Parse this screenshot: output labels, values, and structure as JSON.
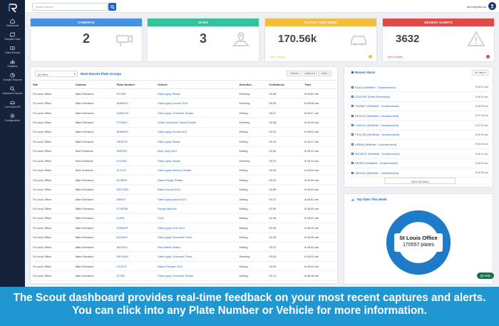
{
  "sidebar": {
    "items": [
      {
        "label": "Dashboard",
        "icon": "home-icon"
      },
      {
        "label": "Dispatch Map",
        "icon": "map-icon"
      },
      {
        "label": "Video Review",
        "icon": "video-icon"
      },
      {
        "label": "Statistics",
        "icon": "chart-icon"
      },
      {
        "label": "Analytic Reports",
        "icon": "report-icon"
      },
      {
        "label": "Advanced Search",
        "icon": "search-icon"
      },
      {
        "label": "CarCheck API",
        "icon": "car-icon"
      },
      {
        "label": "Configuration",
        "icon": "gear-icon"
      }
    ]
  },
  "topbar": {
    "search_placeholder": "Quick Search...",
    "user_email": "demo@rekor.ai"
  },
  "cards": [
    {
      "title": "CAMERAS",
      "value": "2",
      "color": "#4a90e2",
      "icon": "camera-icon",
      "link": ""
    },
    {
      "title": "SITES",
      "value": "3",
      "color": "#34c29a",
      "icon": "map-pin-icon",
      "link": ""
    },
    {
      "title": "PLATES THIS WEEK",
      "value": "170.56k",
      "color": "#f5bd3c",
      "icon": "car-icon",
      "link": "View Details"
    },
    {
      "title": "RECENT ALERTS",
      "value": "3632",
      "color": "#e24a4a",
      "icon": "alert-icon",
      "link": "View Details"
    }
  ],
  "plates_panel": {
    "site_filter": "All Sites",
    "title": "Most Recent Plate Groups",
    "filters": [
      "< Newer",
      "Options ▾",
      "Older >"
    ],
    "columns": [
      "Site",
      "Camera",
      "Plate Number",
      "Vehicle",
      "Direction",
      "Confidence",
      "Time"
    ],
    "rows": [
      [
        "St Louis Office",
        "Main Entrance",
        "PKYR6",
        "Silver-gray Sedan",
        "Entering",
        "93.56",
        "8:49:59 am"
      ],
      [
        "St Louis Office",
        "Main Entrance",
        "ADBN2U",
        "Silver-gray Lincoln SUV",
        "Entering",
        "93.53",
        "8:49:38 am"
      ],
      [
        "St Louis Office",
        "Main Entrance",
        "UDBZ1M",
        "Silver-gray Chevrolet Sedan",
        "Exiting",
        "93.57",
        "8:49:37 am"
      ],
      [
        "St Louis Office",
        "Main Entrance",
        "F7S3817",
        "White Kenworth Tractor/Trailer",
        "Entering",
        "93.38",
        "8:49:25 am"
      ],
      [
        "St Louis Office",
        "Main Entrance",
        "ADBN2U",
        "Silver-gray Honda SUV",
        "Exiting",
        "93.20",
        "8:49:23 am"
      ],
      [
        "St Louis Office",
        "Main Entrance",
        "Y85D7N",
        "Silver-gray Sedan",
        "Exiting",
        "93.12",
        "8:49:17 am"
      ],
      [
        "St Louis Office",
        "Side Entrance",
        "SMP287",
        "Blue Jeep SUV",
        "Exiting",
        "92.84",
        "8:49:12 am"
      ],
      [
        "St Louis Office",
        "Side Entrance",
        "KJ1S9U",
        "Silver-gray Sedan",
        "Entering",
        "93.47",
        "8:49:11 am"
      ],
      [
        "St Louis Office",
        "Side Entrance",
        "3LJC47",
        "Silver-gray Mercury Sedan",
        "Exiting",
        "93.55",
        "8:49:09 am"
      ],
      [
        "St Louis Office",
        "Main Entrance",
        "DL0E8V",
        "Black Dodge Sedan",
        "Exiting",
        "93.00",
        "8:49:09 am"
      ],
      [
        "St Louis Office",
        "Main Entrance",
        "WDZ7BD",
        "Black Honda SUV",
        "Exiting",
        "92.89",
        "8:49:00 am"
      ],
      [
        "St Louis Office",
        "Main Entrance",
        "M9H2Y",
        "Silver-gray Acura SUV",
        "Exiting",
        "93.07",
        "8:48:51 am"
      ],
      [
        "St Louis Office",
        "Main Entrance",
        "FC2E5M",
        "Dodge Minivan",
        "Exiting",
        "92.90",
        "8:48:45 am"
      ],
      [
        "St Louis Office",
        "Main Entrance",
        "KUD5",
        "Ford",
        "Exiting",
        "92.95",
        "8:48:41 am"
      ],
      [
        "St Louis Office",
        "Main Entrance",
        "UGB40P",
        "Silver-gray Gmc SUV",
        "Exiting",
        "89.08",
        "8:48:40 am"
      ],
      [
        "St Louis Office",
        "Main Entrance",
        "DDU692",
        "Silver-gray Chevrolet Truck",
        "Exiting",
        "92.54",
        "8:48:35 am"
      ],
      [
        "St Louis Office",
        "Main Entrance",
        "HEV51U",
        "Red Infiniti Sedan",
        "Exiting",
        "93.37",
        "8:48:34 am"
      ],
      [
        "St Louis Office",
        "Main Entrance",
        "3S2029D",
        "Silver-gray Chevrolet Truck",
        "Entering",
        "93.53",
        "8:48:32 am"
      ],
      [
        "St Louis Office",
        "Main Entrance",
        "CILS75",
        "Black Chrysler SUV",
        "Exiting",
        "93.09",
        "8:48:29 am"
      ],
      [
        "St Louis Office",
        "Main Entrance",
        "CF38Y",
        "Silver-gray Chevrolet Sedan",
        "Exiting",
        "93.17",
        "8:48:28 am"
      ]
    ]
  },
  "alerts_panel": {
    "title": "Recent Alerts",
    "filter": "All Lists ▾",
    "items": [
      {
        "label": "KUD5 (Whitelist - Unauthorized)",
        "time": "8:48:41 am"
      },
      {
        "label": "3S2029D (Fired Electrician)",
        "time": "8:48:32 am"
      },
      {
        "label": "YWZ667 (Whitelist - Unauthorized)",
        "time": "8:48:05 am"
      },
      {
        "label": "DE9C02 (Whitelist - Unauthorized)",
        "time": "8:47:48 am"
      },
      {
        "label": "CK8LOL (Whitelist - Unauthorized)",
        "time": "8:47:09 am"
      },
      {
        "label": "YEQY5D (Whitelist - Unauthorized)",
        "time": "8:46:49 am"
      },
      {
        "label": "L8R8A (Whitelist - Unauthorized)",
        "time": "8:46:45 am"
      },
      {
        "label": "MG2R2V (Whitelist - Unauthorized)",
        "time": "8:46:41 am"
      },
      {
        "label": "HE8RR (Whitelist - Unauthorized)",
        "time": "8:46:32 am"
      },
      {
        "label": "VB3L6D (Whitelist - Unauthorized)",
        "time": "8:46:09 am"
      }
    ],
    "view_all": "View All Alerts"
  },
  "top_sites": {
    "title": "Top Sites This Week",
    "site": "St Louis Office",
    "count_text": "170557 plates",
    "ring_color": "#1e7bc8"
  },
  "help_label": "Help",
  "banner": {
    "line1": "The Scout dashboard provides real-time feedback on your most recent captures and alerts.",
    "line2": "You can click into any Plate Number or Vehicle for more information."
  }
}
